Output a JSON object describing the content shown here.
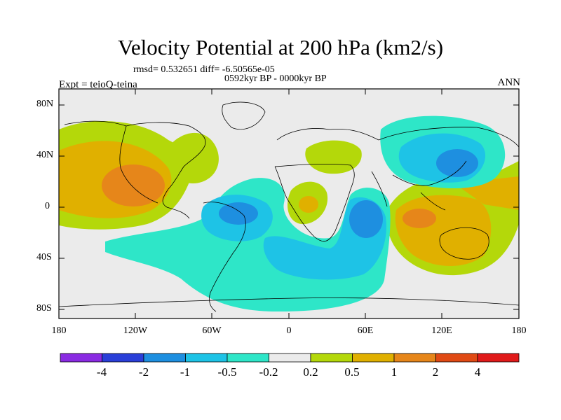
{
  "title": "Velocity Potential at 200 hPa (km2/s)",
  "stats": "rmsd= 0.532651 diff= -6.50565e-05",
  "period": "0592kyr BP - 0000kyr BP",
  "experiment": "Expt = teioQ-teina",
  "season": "ANN",
  "map": {
    "y_ticks": [
      "80N",
      "40N",
      "0",
      "40S",
      "80S"
    ],
    "x_ticks": [
      "180",
      "120W",
      "60W",
      "0",
      "60E",
      "120E",
      "180"
    ]
  },
  "colorbar": {
    "labels": [
      "-4",
      "-2",
      "-1",
      "-0.5",
      "-0.2",
      "0.2",
      "0.5",
      "1",
      "2",
      "4"
    ],
    "colors": [
      "#8a2be2",
      "#2a3fd8",
      "#1e8fe0",
      "#1ec3e6",
      "#2ee6c8",
      "#ebebeb",
      "#b4d80a",
      "#e0b000",
      "#e6861a",
      "#e04a14",
      "#e01a1a"
    ]
  }
}
